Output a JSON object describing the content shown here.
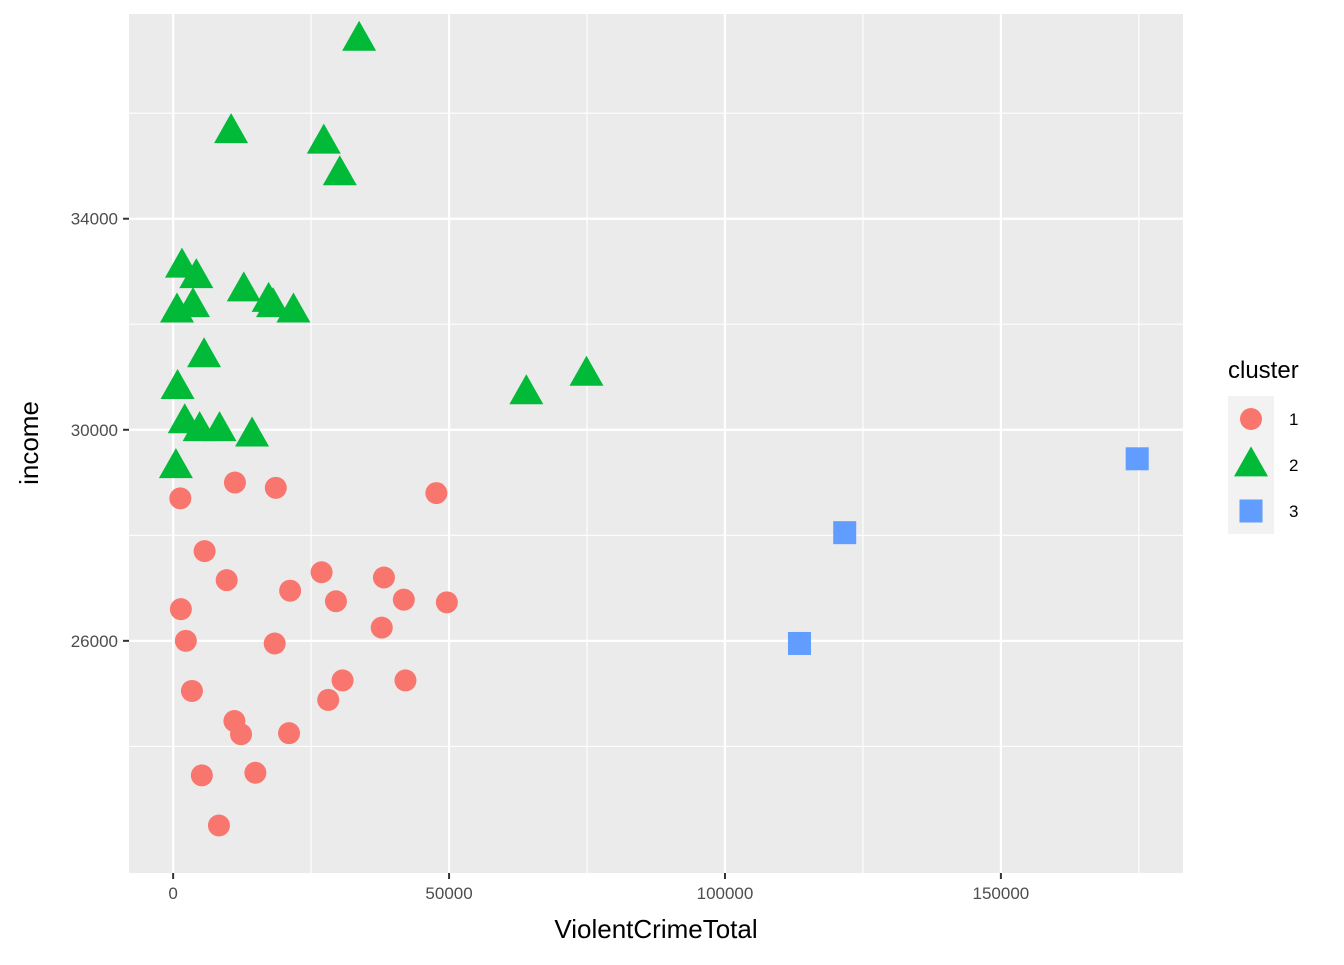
{
  "chart_data": {
    "type": "scatter",
    "title": "",
    "xlabel": "ViolentCrimeTotal",
    "ylabel": "income",
    "xlim": [
      -8000,
      183000
    ],
    "ylim": [
      21600,
      37880
    ],
    "x_ticks": [
      0,
      50000,
      100000,
      150000
    ],
    "x_tick_labels": [
      "0",
      "50000",
      "100000",
      "150000"
    ],
    "y_ticks": [
      26000,
      30000,
      34000
    ],
    "y_tick_labels": [
      "26000",
      "30000",
      "34000"
    ],
    "grid": true,
    "legend": {
      "title": "cluster",
      "position": "right"
    },
    "series": [
      {
        "name": "1",
        "shape": "circle",
        "color": "#F8766D",
        "points": [
          [
            1300,
            28700
          ],
          [
            11200,
            29000
          ],
          [
            18600,
            28900
          ],
          [
            47700,
            28800
          ],
          [
            5700,
            27700
          ],
          [
            9700,
            27150
          ],
          [
            21200,
            26950
          ],
          [
            26900,
            27300
          ],
          [
            38200,
            27200
          ],
          [
            29500,
            26750
          ],
          [
            41800,
            26780
          ],
          [
            49600,
            26730
          ],
          [
            1400,
            26600
          ],
          [
            2300,
            26000
          ],
          [
            18400,
            25950
          ],
          [
            37800,
            26250
          ],
          [
            3400,
            25050
          ],
          [
            30700,
            25250
          ],
          [
            42100,
            25250
          ],
          [
            28100,
            24880
          ],
          [
            11100,
            24480
          ],
          [
            12300,
            24230
          ],
          [
            21000,
            24250
          ],
          [
            5200,
            23450
          ],
          [
            14900,
            23500
          ],
          [
            8300,
            22500
          ]
        ]
      },
      {
        "name": "2",
        "shape": "triangle",
        "color": "#00BA38",
        "points": [
          [
            33700,
            37400
          ],
          [
            10500,
            35650
          ],
          [
            27300,
            35450
          ],
          [
            30200,
            34850
          ],
          [
            1600,
            33100
          ],
          [
            4200,
            32900
          ],
          [
            12800,
            32650
          ],
          [
            17300,
            32450
          ],
          [
            18100,
            32350
          ],
          [
            21800,
            32250
          ],
          [
            700,
            32250
          ],
          [
            3600,
            32350
          ],
          [
            5600,
            31400
          ],
          [
            800,
            30800
          ],
          [
            2100,
            30150
          ],
          [
            4800,
            30000
          ],
          [
            8400,
            30000
          ],
          [
            14300,
            29900
          ],
          [
            500,
            29300
          ],
          [
            64000,
            30700
          ],
          [
            74900,
            31050
          ]
        ]
      },
      {
        "name": "3",
        "shape": "square",
        "color": "#619CFF",
        "points": [
          [
            113500,
            25950
          ],
          [
            121700,
            28050
          ],
          [
            174700,
            29450
          ]
        ]
      }
    ]
  }
}
